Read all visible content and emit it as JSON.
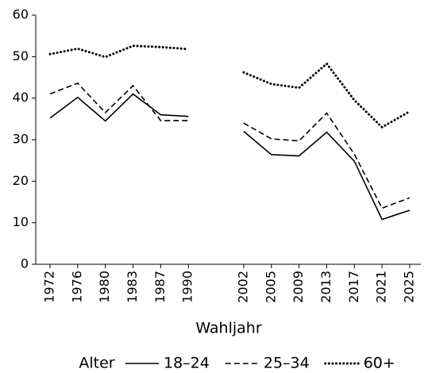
{
  "chart_data": {
    "type": "line",
    "x_label": "Wahljahr",
    "legend_title": "Alter",
    "categories": [
      "1972",
      "1976",
      "1980",
      "1983",
      "1987",
      "1990",
      null,
      "2002",
      "2005",
      "2009",
      "2013",
      "2017",
      "2021",
      "2025"
    ],
    "series": [
      {
        "name": "18–24",
        "color": "#000000",
        "dash": "solid",
        "values": [
          35.2,
          40.2,
          34.5,
          41.0,
          36.0,
          35.6,
          null,
          32.0,
          26.4,
          26.1,
          31.8,
          24.8,
          10.8,
          13.0
        ]
      },
      {
        "name": "25–34",
        "color": "#000000",
        "dash": "dashed",
        "values": [
          41.0,
          43.6,
          36.5,
          43.0,
          34.6,
          34.6,
          null,
          34.0,
          30.2,
          29.7,
          36.4,
          26.5,
          13.5,
          16.0
        ]
      },
      {
        "name": "60+",
        "color": "#000000",
        "dash": "dotted",
        "values": [
          50.6,
          51.9,
          49.9,
          52.6,
          52.3,
          51.8,
          null,
          46.2,
          43.4,
          42.5,
          48.3,
          39.5,
          33.0,
          36.8
        ]
      }
    ],
    "ylim": [
      0,
      60
    ],
    "yticks": [
      0,
      10,
      20,
      30,
      40,
      50,
      60
    ],
    "grid": false,
    "legend_position": "bottom"
  }
}
